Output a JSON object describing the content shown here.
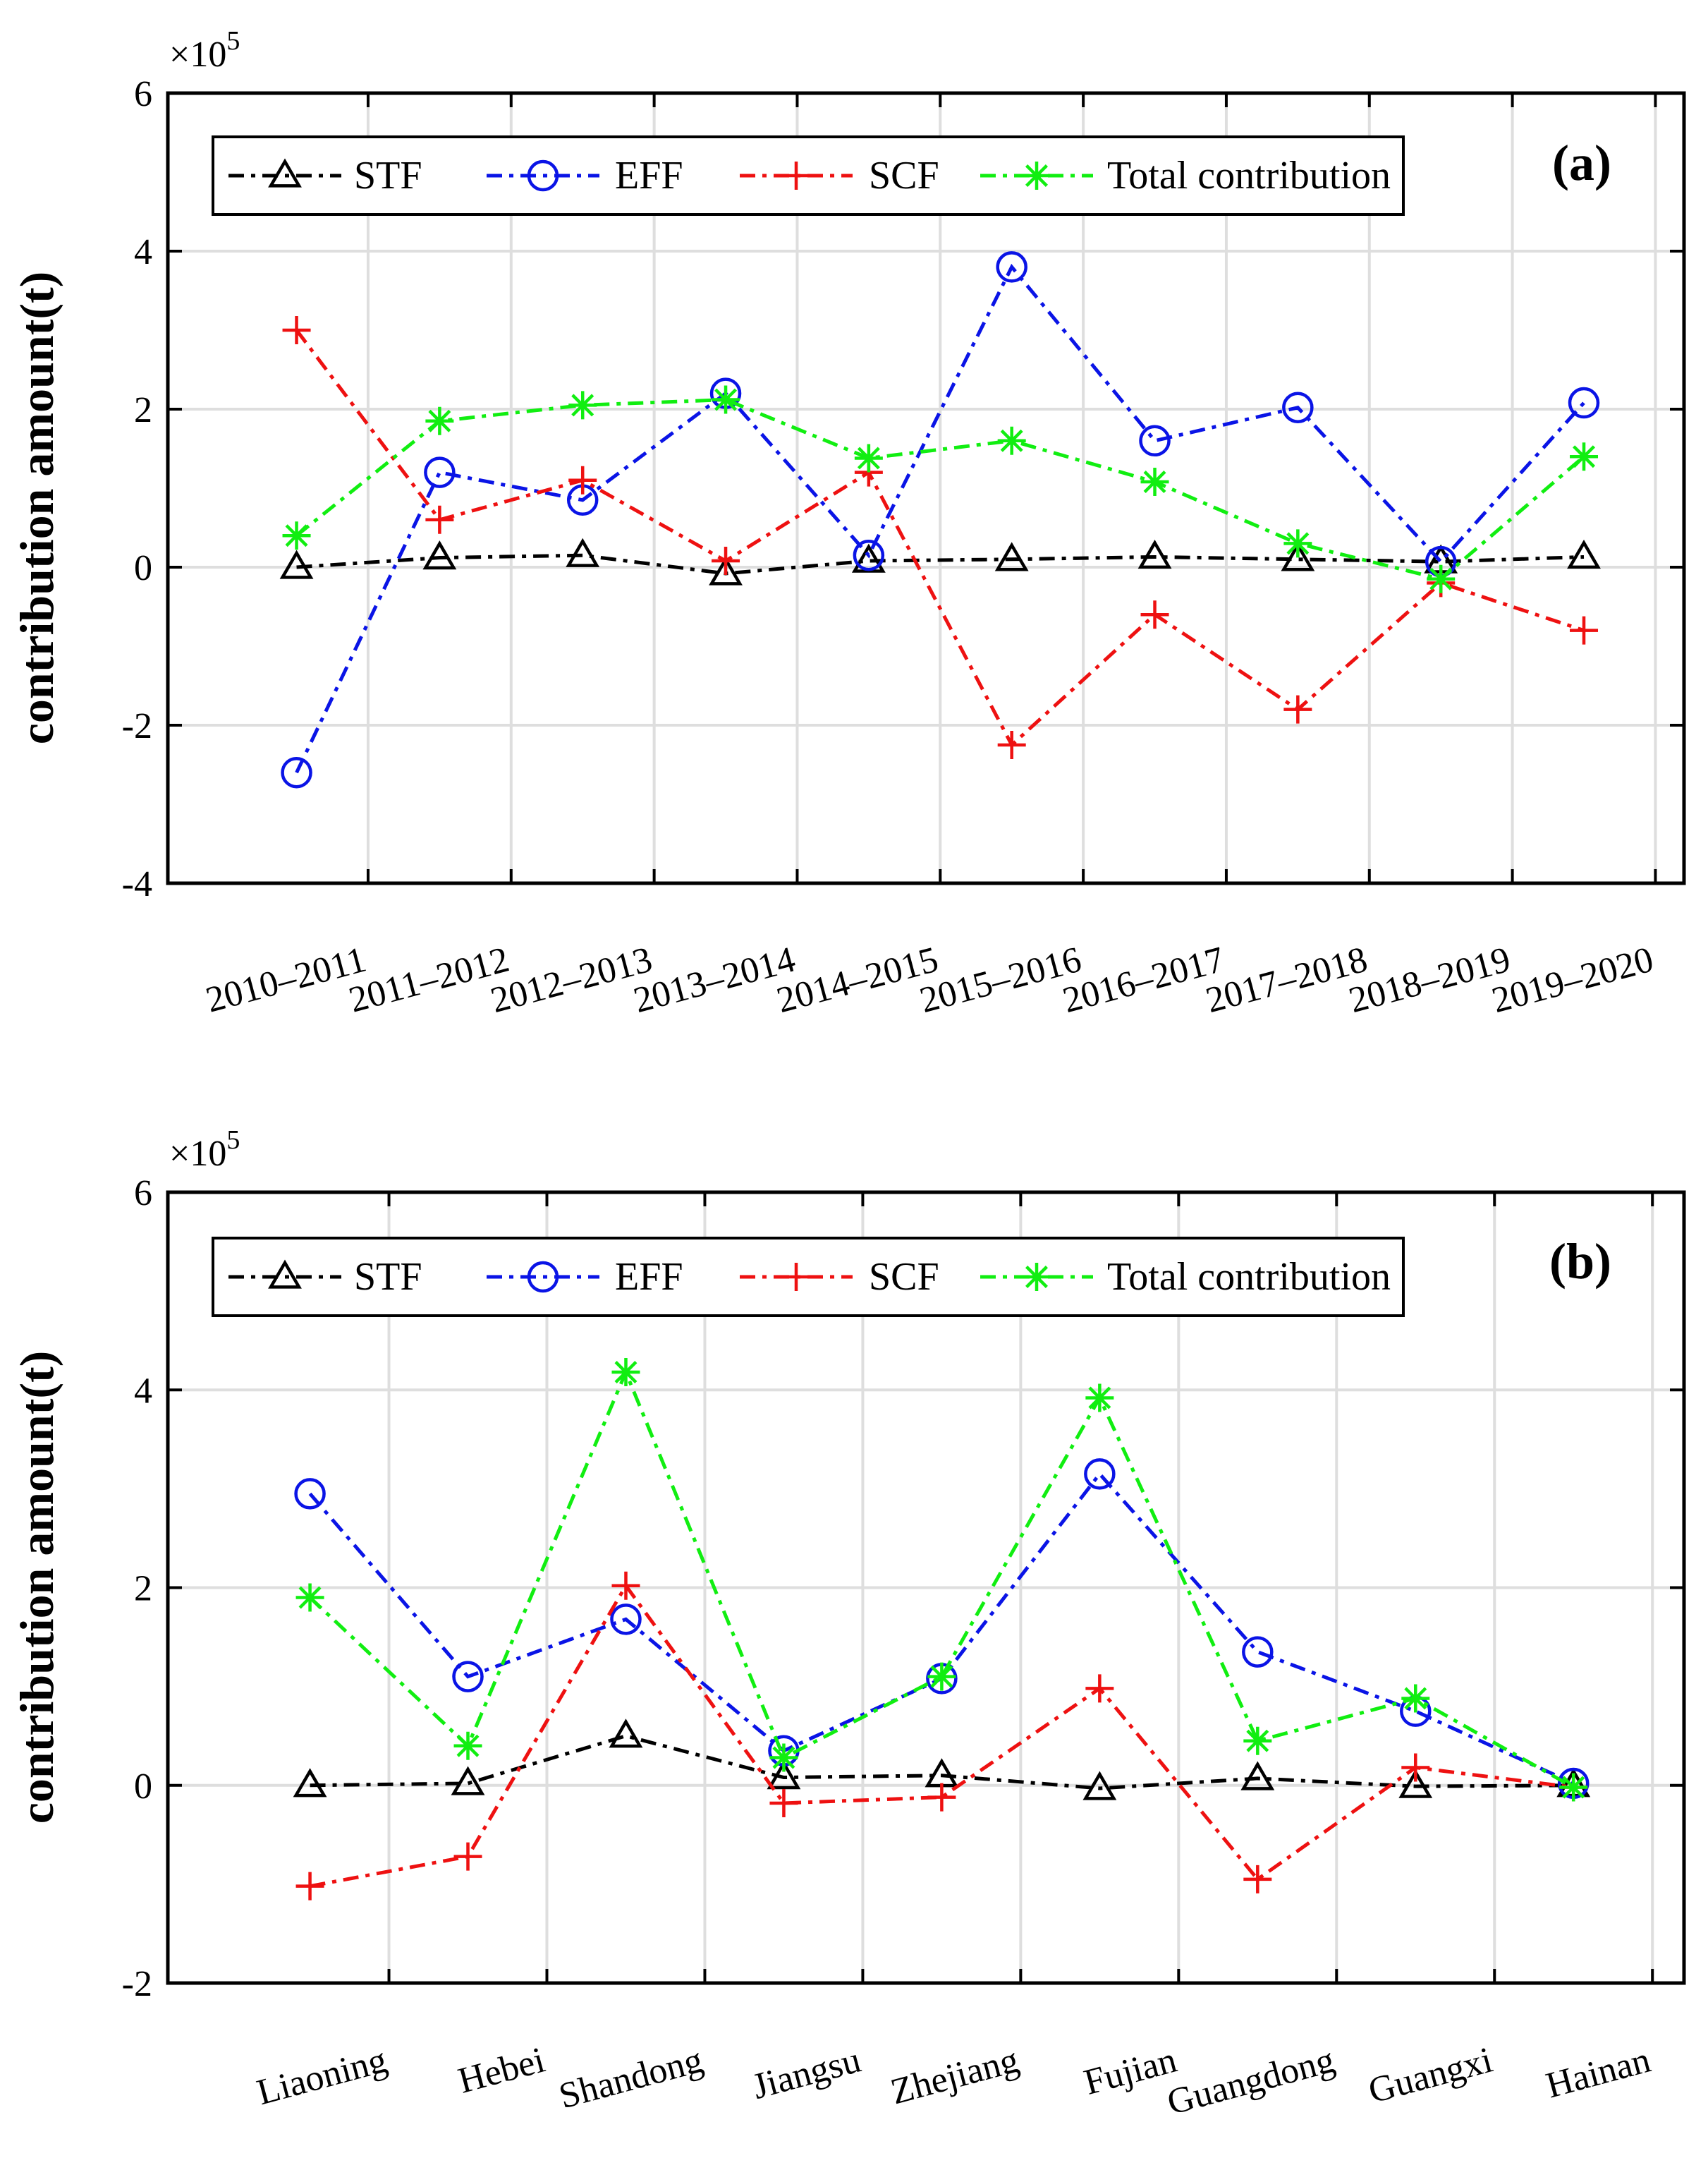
{
  "legend": {
    "STF": "STF",
    "EFF": "EFF",
    "SCF": "SCF",
    "Total": "Total contribution"
  },
  "colors": {
    "STF": "#000000",
    "EFF": "#0a14e6",
    "SCF": "#ee1111",
    "Total": "#11ee11"
  },
  "chart_data": [
    {
      "type": "line",
      "panel_label": "(a)",
      "ylabel": "contribution amount(t)",
      "exponent_label": "×10",
      "exponent_power": "5",
      "ylim": [
        -4,
        6
      ],
      "yticks": [
        "-4",
        "-2",
        "0",
        "2",
        "4",
        "6"
      ],
      "grid": true,
      "legend_position": "top",
      "categories": [
        "2010–2011",
        "2011–2012",
        "2012–2013",
        "2013–2014",
        "2014–2015",
        "2015–2016",
        "2016–2017",
        "2017–2018",
        "2018–2019",
        "2019–2020"
      ],
      "series": [
        {
          "name": "STF",
          "marker": "triangle",
          "values": [
            0.0,
            0.12,
            0.15,
            -0.08,
            0.08,
            0.1,
            0.13,
            0.1,
            0.07,
            0.13
          ]
        },
        {
          "name": "EFF",
          "marker": "circle",
          "values": [
            -2.6,
            1.2,
            0.85,
            2.2,
            0.15,
            3.8,
            1.6,
            2.02,
            0.07,
            2.08
          ]
        },
        {
          "name": "SCF",
          "marker": "plus",
          "values": [
            3.0,
            0.6,
            1.1,
            0.08,
            1.2,
            -2.25,
            -0.6,
            -1.8,
            -0.2,
            -0.8
          ]
        },
        {
          "name": "Total contribution",
          "marker": "star",
          "values": [
            0.4,
            1.85,
            2.05,
            2.12,
            1.38,
            1.6,
            1.08,
            0.3,
            -0.15,
            1.4
          ]
        }
      ]
    },
    {
      "type": "line",
      "panel_label": "(b)",
      "ylabel": "contribution amount(t)",
      "exponent_label": "×10",
      "exponent_power": "5",
      "ylim": [
        -2,
        6
      ],
      "yticks": [
        "-2",
        "0",
        "2",
        "4",
        "6"
      ],
      "grid": true,
      "legend_position": "top",
      "categories": [
        "Liaoning",
        "Hebei",
        "Shandong",
        "Jiangsu",
        "Zhejiang",
        "Fujian",
        "Guangdong",
        "Guangxi",
        "Hainan"
      ],
      "series": [
        {
          "name": "STF",
          "marker": "triangle",
          "values": [
            0.0,
            0.02,
            0.5,
            0.08,
            0.1,
            -0.03,
            0.07,
            -0.01,
            0.0
          ]
        },
        {
          "name": "EFF",
          "marker": "circle",
          "values": [
            2.95,
            1.1,
            1.68,
            0.35,
            1.08,
            3.15,
            1.35,
            0.75,
            0.02
          ]
        },
        {
          "name": "SCF",
          "marker": "plus",
          "values": [
            -1.02,
            -0.72,
            2.02,
            -0.18,
            -0.12,
            0.98,
            -0.95,
            0.18,
            -0.02
          ]
        },
        {
          "name": "Total contribution",
          "marker": "star",
          "values": [
            1.9,
            0.4,
            4.18,
            0.28,
            1.1,
            3.92,
            0.45,
            0.88,
            -0.02
          ]
        }
      ]
    }
  ]
}
